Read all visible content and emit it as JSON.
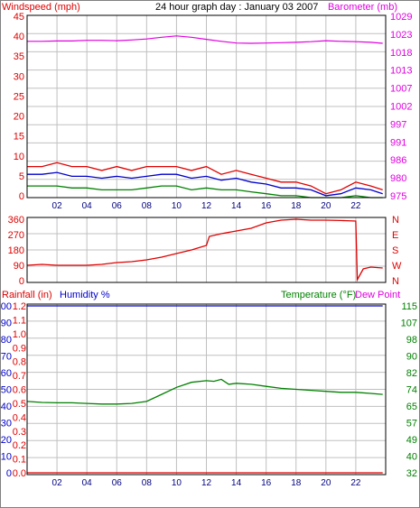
{
  "chart_data": [
    {
      "type": "line",
      "title": "24 hour graph day : January 03 2007",
      "left_axis_label": "Windspeed (mph)",
      "right_axis_label": "Barometer (mb)",
      "x_ticks": [
        "02",
        "04",
        "06",
        "08",
        "10",
        "12",
        "14",
        "16",
        "18",
        "20",
        "22"
      ],
      "left_ticks": [
        0,
        5,
        10,
        15,
        20,
        25,
        30,
        35,
        40,
        45
      ],
      "right_ticks": [
        975,
        980,
        986,
        991,
        997,
        1002,
        1007,
        1013,
        1018,
        1023,
        1029
      ],
      "xlim": [
        0,
        24
      ],
      "left_ylim": [
        0,
        47
      ],
      "right_ylim": [
        975,
        1029
      ],
      "grid": true,
      "colors": {
        "wind": "#e00000",
        "average": "#0000cc",
        "low": "#008000",
        "barometer": "#e000e0"
      },
      "series": [
        {
          "key": "barometer",
          "axis": "right",
          "x": [
            0,
            1,
            2,
            3,
            4,
            5,
            6,
            7,
            8,
            9,
            10,
            11,
            12,
            13,
            14,
            15,
            16,
            17,
            18,
            19,
            20,
            21,
            22,
            23,
            23.8
          ],
          "y": [
            1021.3,
            1021.3,
            1021.4,
            1021.4,
            1021.6,
            1021.6,
            1021.5,
            1021.7,
            1022,
            1022.5,
            1022.9,
            1022.5,
            1021.9,
            1021.3,
            1020.8,
            1020.7,
            1020.8,
            1020.9,
            1021,
            1021.2,
            1021.5,
            1021.3,
            1021.2,
            1021,
            1020.7
          ]
        },
        {
          "key": "wind",
          "axis": "left",
          "x": [
            0,
            1,
            2,
            3,
            4,
            5,
            6,
            7,
            8,
            9,
            10,
            11,
            12,
            13,
            14,
            15,
            16,
            17,
            18,
            19,
            20,
            21,
            22,
            23,
            23.8
          ],
          "y": [
            8,
            8,
            9,
            8,
            8,
            7,
            8,
            7,
            8,
            8,
            8,
            7,
            8,
            6,
            7,
            6,
            5,
            4,
            4,
            3,
            1,
            2,
            4,
            3,
            2
          ]
        },
        {
          "key": "average",
          "axis": "left",
          "x": [
            0,
            1,
            2,
            3,
            4,
            5,
            6,
            7,
            8,
            9,
            10,
            11,
            12,
            13,
            14,
            15,
            16,
            17,
            18,
            19,
            20,
            21,
            22,
            23,
            23.8
          ],
          "y": [
            6,
            6,
            6.5,
            5.5,
            5.5,
            5,
            5.5,
            5,
            5.5,
            6,
            6,
            5,
            5.5,
            4.5,
            5,
            4,
            3.5,
            2.5,
            2.5,
            2,
            0.5,
            1,
            2.5,
            2,
            1
          ]
        },
        {
          "key": "low",
          "axis": "left",
          "x": [
            0,
            1,
            2,
            3,
            4,
            5,
            6,
            7,
            8,
            9,
            10,
            11,
            12,
            13,
            14,
            15,
            16,
            17,
            18,
            19,
            20,
            21,
            22,
            23,
            23.8
          ],
          "y": [
            3,
            3,
            3,
            2.5,
            2.5,
            2,
            2,
            2,
            2.5,
            3,
            3,
            2,
            2.5,
            2,
            2,
            1.5,
            1,
            0.5,
            0.5,
            0,
            0,
            0,
            0.5,
            0,
            0
          ]
        }
      ]
    },
    {
      "type": "line",
      "left_ticks": [
        0,
        90,
        180,
        270,
        360
      ],
      "right_ticks": [
        "N",
        "W",
        "S",
        "E",
        "N"
      ],
      "xlim": [
        0,
        24
      ],
      "ylim": [
        0,
        360
      ],
      "grid": true,
      "colors": {
        "direction": "#e00000"
      },
      "series": [
        {
          "key": "direction",
          "x": [
            0,
            1,
            2,
            3,
            4,
            5,
            6,
            7,
            8,
            9,
            10,
            11,
            12,
            12.2,
            13,
            14,
            15,
            16,
            17,
            18,
            19,
            20,
            21,
            22,
            22.1,
            22.5,
            23,
            23.8
          ],
          "y": [
            95,
            100,
            95,
            95,
            95,
            100,
            110,
            115,
            125,
            140,
            160,
            180,
            205,
            255,
            270,
            285,
            300,
            330,
            345,
            350,
            345,
            345,
            343,
            340,
            15,
            75,
            85,
            80
          ]
        }
      ]
    },
    {
      "type": "line",
      "rain_axis_label": "Rainfall (in)",
      "humidity_axis_label": "Humidity %",
      "temperature_axis_label": "Temperature (°F)",
      "dewpoint_axis_label": "Dew Point",
      "rain_ticks": [
        "0.0",
        "0.1",
        "0.2",
        "0.3",
        "0.4",
        "0.5",
        "0.6",
        "0.7",
        "0.8",
        "0.9",
        "1.0",
        "1.1",
        "1.2"
      ],
      "humidity_ticks": [
        0,
        10,
        20,
        30,
        40,
        50,
        60,
        70,
        80,
        90,
        100
      ],
      "temperature_ticks": [
        32,
        40,
        49,
        57,
        65,
        74,
        82,
        90,
        98,
        107,
        115
      ],
      "x_ticks": [
        "02",
        "04",
        "06",
        "08",
        "10",
        "12",
        "14",
        "16",
        "18",
        "20",
        "22"
      ],
      "xlim": [
        0,
        24
      ],
      "temperature_ylim": [
        32,
        115
      ],
      "grid": true,
      "colors": {
        "rain": "#e00000",
        "humidity": "#0000cc",
        "temperature": "#008000"
      },
      "series": [
        {
          "key": "rain",
          "x": [
            0,
            23.8
          ],
          "y": [
            0,
            0
          ]
        },
        {
          "key": "humidity",
          "x": [
            0,
            23.8
          ],
          "y": [
            100,
            100
          ]
        },
        {
          "key": "temperature",
          "x": [
            0,
            1,
            2,
            3,
            4,
            5,
            6,
            7,
            8,
            9,
            10,
            11,
            12,
            12.5,
            13,
            13.5,
            14,
            15,
            16,
            17,
            18,
            19,
            20,
            21,
            22,
            23,
            23.8
          ],
          "y": [
            67.5,
            67,
            66.8,
            66.8,
            66.5,
            66.2,
            66.2,
            66.5,
            67.5,
            71,
            74.5,
            77,
            77.8,
            77.5,
            78.5,
            76,
            76.5,
            76,
            75,
            74,
            73.5,
            73,
            72.5,
            72,
            72,
            71.5,
            71
          ]
        }
      ]
    }
  ]
}
